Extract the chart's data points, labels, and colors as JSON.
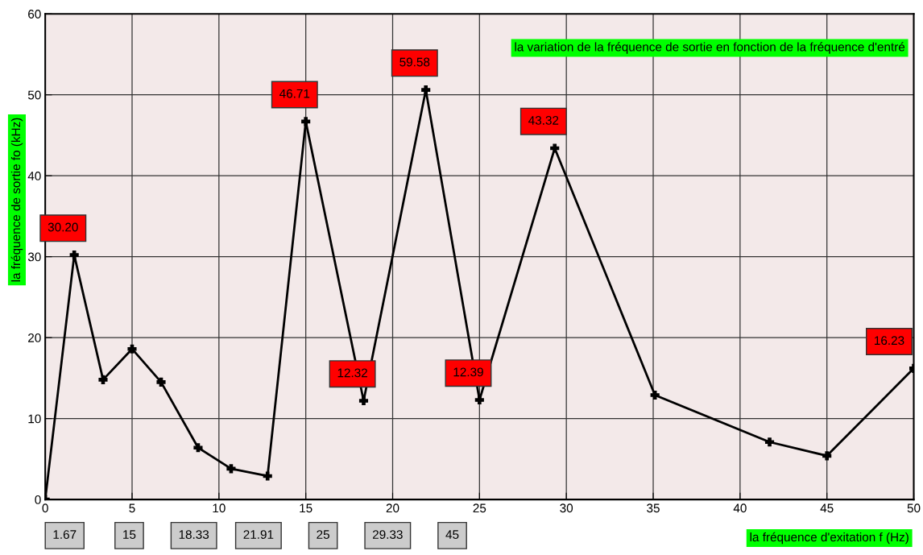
{
  "chart_data": {
    "type": "line",
    "title": "la variation de la fréquence de sortie en fonction de la fréquence d'entré",
    "xlabel": "la fréquence d'exitation f (Hz)",
    "ylabel": "la fréquence de sortie fo (kHz)",
    "x": [
      0,
      1.67,
      3.33,
      5,
      6.67,
      8.8,
      10.7,
      12.8,
      15,
      18.33,
      21.91,
      25,
      29.33,
      35.1,
      41.7,
      45,
      50
    ],
    "series": [
      {
        "color": "#000000",
        "values": [
          0,
          30.2,
          14.8,
          18.6,
          14.5,
          6.4,
          3.8,
          2.9,
          46.7,
          12.2,
          50.6,
          12.3,
          43.4,
          12.9,
          7.1,
          5.4,
          16.2
        ]
      }
    ],
    "xlim": [
      0,
      50
    ],
    "ylim": [
      0,
      60
    ],
    "xticks": [
      0,
      5,
      10,
      15,
      20,
      25,
      30,
      35,
      40,
      45,
      50
    ],
    "yticks": [
      0,
      10,
      20,
      30,
      40,
      50,
      60
    ],
    "grid": true,
    "marker": "cross",
    "line_style": "solid",
    "annotations": [
      {
        "text": "30.20",
        "x": 1.67,
        "y": 30.2
      },
      {
        "text": "46.71",
        "x": 15,
        "y": 46.7
      },
      {
        "text": "12.32",
        "x": 18.33,
        "y": 12.2
      },
      {
        "text": "59.58",
        "x": 21.91,
        "y": 50.6
      },
      {
        "text": "12.39",
        "x": 25,
        "y": 12.3
      },
      {
        "text": "43.32",
        "x": 29.33,
        "y": 43.4
      },
      {
        "text": "16.23",
        "x": 50,
        "y": 16.2
      },
      "1.67",
      "15",
      "18.33",
      "21.91",
      "25",
      "29.33",
      "45"
    ]
  }
}
